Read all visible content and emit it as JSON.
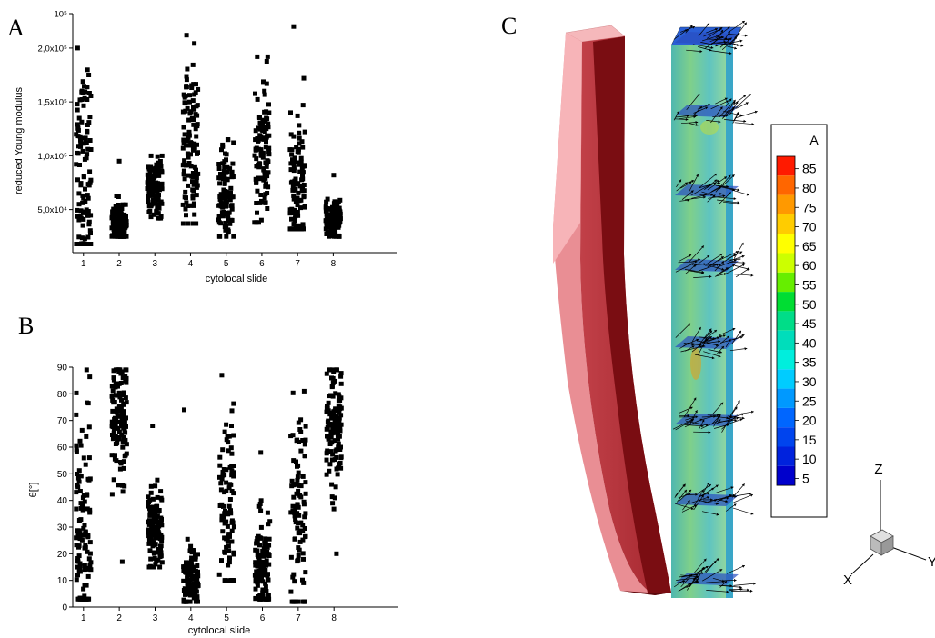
{
  "figure": {
    "letters": {
      "a": "A",
      "b": "B",
      "c": "C"
    }
  },
  "chart_data": [
    {
      "type": "scatter",
      "panel": "A",
      "title": "",
      "xlabel": "cytolocal slide",
      "ylabel": "reduced Young modulus",
      "categories": [
        "1",
        "2",
        "3",
        "4",
        "5",
        "6",
        "7",
        "8"
      ],
      "xlim": [
        0.7,
        9.8
      ],
      "ylim": [
        10000,
        232000
      ],
      "y_ticks": [
        {
          "value": 50000,
          "label": "5,0x10⁴"
        },
        {
          "value": 100000,
          "label": "1,0x10⁵"
        },
        {
          "value": 150000,
          "label": "1,5x10⁵"
        },
        {
          "value": 200000,
          "label": "2,0x10⁵"
        },
        {
          "value": 232000,
          "label": "10⁵"
        }
      ],
      "marker": "square",
      "groups": [
        {
          "x": 1,
          "y_min": 18000,
          "y_max": 200000,
          "n": 115,
          "mean": 85000,
          "spread": 55000
        },
        {
          "x": 2,
          "y_min": 25000,
          "y_max": 95000,
          "n": 150,
          "mean": 38000,
          "spread": 10000
        },
        {
          "x": 3,
          "y_min": 42000,
          "y_max": 100000,
          "n": 130,
          "mean": 73000,
          "spread": 12000
        },
        {
          "x": 4,
          "y_min": 37000,
          "y_max": 212000,
          "n": 120,
          "mean": 110000,
          "spread": 40000
        },
        {
          "x": 5,
          "y_min": 25000,
          "y_max": 115000,
          "n": 110,
          "mean": 62000,
          "spread": 22000
        },
        {
          "x": 6,
          "y_min": 38000,
          "y_max": 192000,
          "n": 120,
          "mean": 100000,
          "spread": 32000
        },
        {
          "x": 7,
          "y_min": 32000,
          "y_max": 220000,
          "n": 110,
          "mean": 70000,
          "spread": 35000
        },
        {
          "x": 8,
          "y_min": 25000,
          "y_max": 82000,
          "n": 130,
          "mean": 40000,
          "spread": 8000
        }
      ]
    },
    {
      "type": "scatter",
      "panel": "B",
      "title": "",
      "xlabel": "cytolocal slide",
      "ylabel": "θ[°]",
      "categories": [
        "1",
        "2",
        "3",
        "4",
        "5",
        "6",
        "7",
        "8"
      ],
      "xlim": [
        0.7,
        9.8
      ],
      "ylim": [
        0,
        90
      ],
      "y_ticks": [
        {
          "value": 0,
          "label": "0"
        },
        {
          "value": 10,
          "label": "10"
        },
        {
          "value": 20,
          "label": "20"
        },
        {
          "value": 30,
          "label": "30"
        },
        {
          "value": 40,
          "label": "40"
        },
        {
          "value": 50,
          "label": "50"
        },
        {
          "value": 60,
          "label": "60"
        },
        {
          "value": 70,
          "label": "70"
        },
        {
          "value": 80,
          "label": "80"
        },
        {
          "value": 90,
          "label": "90"
        }
      ],
      "marker": "square",
      "groups": [
        {
          "x": 1,
          "y_min": 3,
          "y_max": 89,
          "n": 120,
          "mean": 25,
          "spread": 22
        },
        {
          "x": 2,
          "y_min": 17,
          "y_max": 89,
          "n": 130,
          "mean": 72,
          "spread": 14
        },
        {
          "x": 3,
          "y_min": 15,
          "y_max": 68,
          "n": 130,
          "mean": 29,
          "spread": 8
        },
        {
          "x": 4,
          "y_min": 2,
          "y_max": 74,
          "n": 120,
          "mean": 10,
          "spread": 6
        },
        {
          "x": 5,
          "y_min": 10,
          "y_max": 87,
          "n": 100,
          "mean": 38,
          "spread": 20
        },
        {
          "x": 6,
          "y_min": 3,
          "y_max": 58,
          "n": 120,
          "mean": 15,
          "spread": 10
        },
        {
          "x": 7,
          "y_min": 2,
          "y_max": 81,
          "n": 100,
          "mean": 35,
          "spread": 20
        },
        {
          "x": 8,
          "y_min": 20,
          "y_max": 89,
          "n": 130,
          "mean": 70,
          "spread": 13
        }
      ]
    }
  ],
  "panel_c": {
    "legend": {
      "title": "A",
      "levels": [
        "85",
        "80",
        "75",
        "70",
        "65",
        "60",
        "55",
        "50",
        "45",
        "40",
        "35",
        "30",
        "25",
        "20",
        "15",
        "10",
        "5"
      ],
      "colors": [
        "#ff1a00",
        "#ff6600",
        "#ff9900",
        "#ffcc00",
        "#ffff00",
        "#ccff00",
        "#66ee00",
        "#00dd33",
        "#00dd88",
        "#00ddbb",
        "#00eedd",
        "#00ccff",
        "#0099ff",
        "#0066ff",
        "#0044ee",
        "#0022dd",
        "#0000cc"
      ]
    },
    "axes": {
      "z": "Z",
      "x": "X",
      "y": "Y"
    },
    "colors": {
      "tube_light": "#f4a6a8",
      "tube_mid": "#c8424a",
      "tube_dark": "#7a0d12",
      "field_base": "#6fcf9c"
    }
  }
}
